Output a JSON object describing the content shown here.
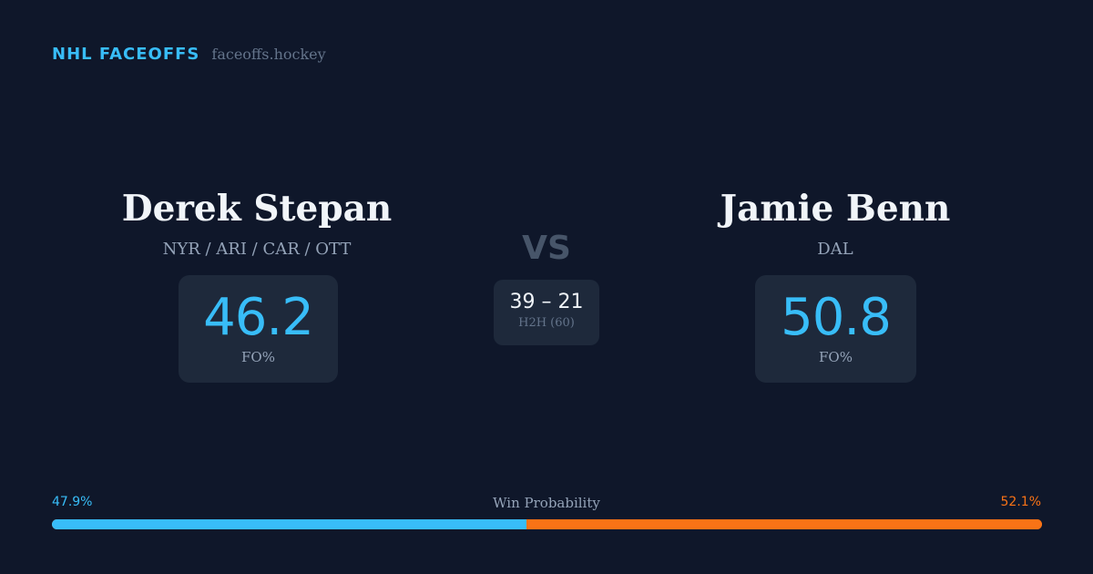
{
  "brand": {
    "name": "NHL FACEOFFS",
    "domain": "faceoffs.hockey",
    "accent_color": "#38bdf8"
  },
  "players": {
    "left": {
      "name": "Derek Stepan",
      "teams": "NYR / ARI / CAR / OTT",
      "fo_pct": "46.2",
      "fo_label": "FO%"
    },
    "right": {
      "name": "Jamie Benn",
      "teams": "DAL",
      "fo_pct": "50.8",
      "fo_label": "FO%"
    }
  },
  "versus": {
    "label": "VS",
    "h2h_score": "39 – 21",
    "h2h_label": "H2H (60)"
  },
  "win_probability": {
    "title": "Win Probability",
    "left_label": "47.9%",
    "right_label": "52.1%",
    "left_pct": 47.9,
    "right_pct": 52.1,
    "left_color": "#38bdf8",
    "right_color": "#f97316"
  }
}
